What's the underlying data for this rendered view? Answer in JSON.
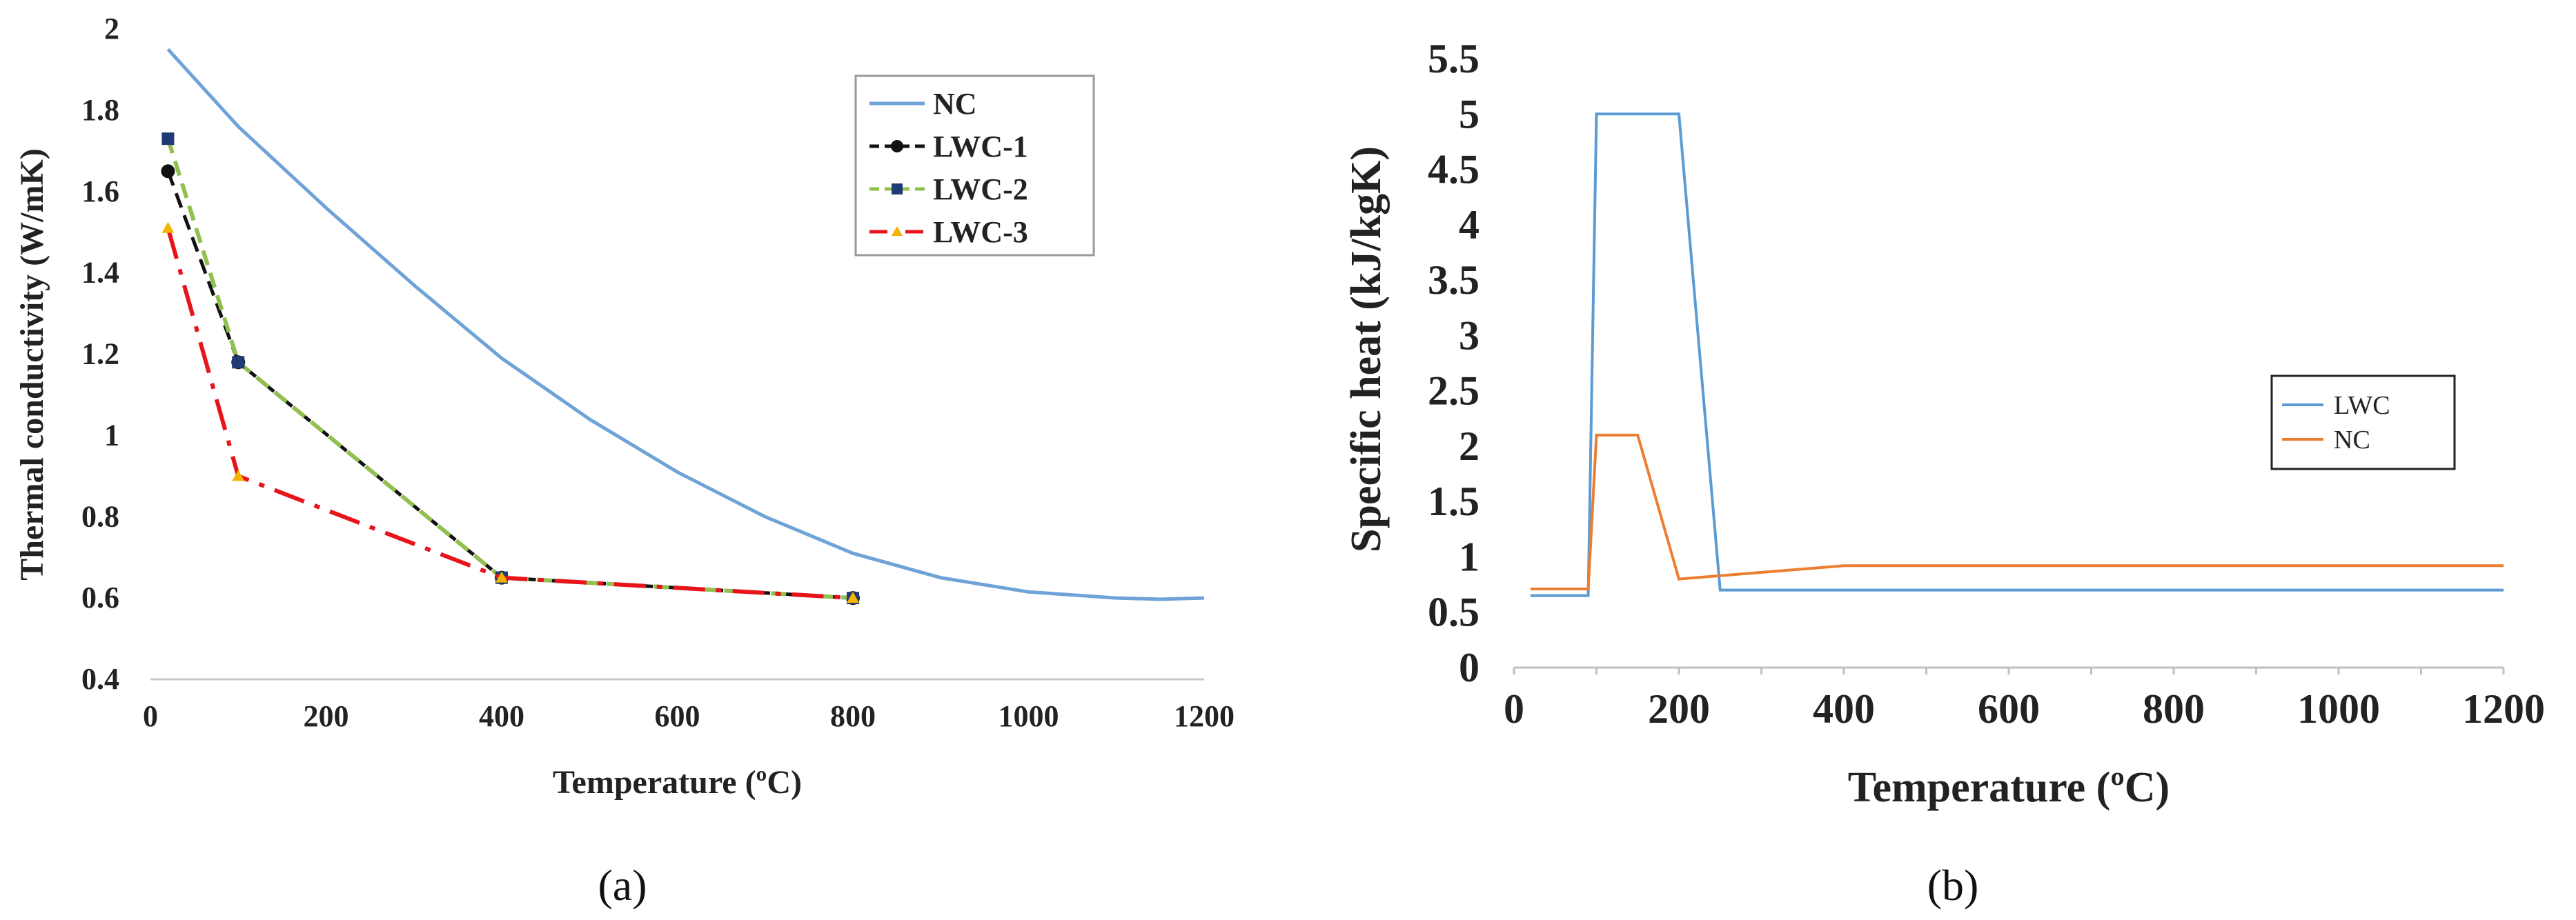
{
  "chart_data": [
    {
      "type": "line",
      "panel_label": "(a)",
      "title": "",
      "xlabel": "Temperature (ºC)",
      "ylabel": "Thermal conductivity (W/mK)",
      "xlim": [
        0,
        1200
      ],
      "ylim": [
        0.4,
        2
      ],
      "xticks": [
        "0",
        "200",
        "400",
        "600",
        "800",
        "1000",
        "1200"
      ],
      "yticks": [
        "0.4",
        "0.6",
        "0.8",
        "1",
        "1.2",
        "1.4",
        "1.6",
        "1.8",
        "2"
      ],
      "grid": false,
      "legend_position": "top-right",
      "colors": {
        "NC": "#6fa3d8",
        "LWC-1": "#111111",
        "LWC-2": "#92c050",
        "LWC-3": "#e8141c"
      },
      "series": [
        {
          "name": "NC",
          "style": "solid",
          "x": [
            20,
            100,
            200,
            300,
            400,
            500,
            600,
            700,
            800,
            900,
            1000,
            1100,
            1150,
            1200
          ],
          "y": [
            1.95,
            1.76,
            1.56,
            1.37,
            1.19,
            1.04,
            0.91,
            0.8,
            0.71,
            0.65,
            0.615,
            0.6,
            0.597,
            0.6
          ]
        },
        {
          "name": "LWC-1",
          "style": "dashed",
          "marker": "circle",
          "x": [
            20,
            100,
            400,
            800
          ],
          "y": [
            1.65,
            1.18,
            0.65,
            0.6
          ]
        },
        {
          "name": "LWC-2",
          "style": "dashed",
          "marker": "square",
          "x": [
            20,
            100,
            400,
            800
          ],
          "y": [
            1.73,
            1.18,
            0.65,
            0.6
          ]
        },
        {
          "name": "LWC-3",
          "style": "dashdot",
          "marker": "triangle",
          "x": [
            20,
            100,
            400,
            800
          ],
          "y": [
            1.51,
            0.9,
            0.65,
            0.6
          ]
        }
      ]
    },
    {
      "type": "line",
      "panel_label": "(b)",
      "title": "",
      "xlabel": "Temperature (ºC)",
      "ylabel": "Specific heat (kJ/kgK)",
      "xlim": [
        0,
        1200
      ],
      "ylim": [
        0,
        5.5
      ],
      "xticks": [
        "0",
        "200",
        "400",
        "600",
        "800",
        "1000",
        "1200"
      ],
      "yticks": [
        "0",
        "0.5",
        "1",
        "1.5",
        "2",
        "2.5",
        "3",
        "3.5",
        "4",
        "4.5",
        "5",
        "5.5"
      ],
      "grid": false,
      "legend_position": "middle-right",
      "colors": {
        "LWC": "#5b9bd5",
        "NC": "#ed7d31"
      },
      "series": [
        {
          "name": "LWC",
          "style": "solid",
          "x": [
            20,
            90,
            100,
            200,
            250,
            1200
          ],
          "y": [
            0.65,
            0.65,
            5.0,
            5.0,
            0.7,
            0.7
          ]
        },
        {
          "name": "NC",
          "style": "solid",
          "x": [
            20,
            90,
            100,
            150,
            200,
            400,
            1200
          ],
          "y": [
            0.71,
            0.71,
            2.1,
            2.1,
            0.8,
            0.92,
            0.92
          ]
        }
      ]
    }
  ]
}
